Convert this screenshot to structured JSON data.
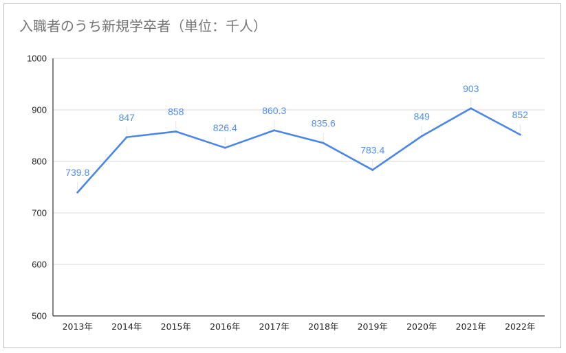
{
  "chart_data": {
    "type": "line",
    "title": "入職者のうち新規学卒者（単位：千人）",
    "categories": [
      "2013年",
      "2014年",
      "2015年",
      "2016年",
      "2017年",
      "2018年",
      "2019年",
      "2020年",
      "2021年",
      "2022年"
    ],
    "values": [
      739.8,
      847,
      858,
      826.4,
      860.3,
      835.6,
      783.4,
      849,
      903,
      852
    ],
    "data_labels": [
      "739.8",
      "847",
      "858",
      "826.4",
      "860.3",
      "835.6",
      "783.4",
      "849",
      "903",
      "852"
    ],
    "ylim": [
      500,
      1000
    ],
    "yticks": [
      500,
      600,
      700,
      800,
      900,
      1000
    ],
    "ytick_labels": [
      "500",
      "600",
      "700",
      "800",
      "900",
      "1000"
    ],
    "xlabel": "",
    "ylabel": "",
    "grid": true,
    "legend": "none",
    "line_color": "#4a86e8"
  }
}
